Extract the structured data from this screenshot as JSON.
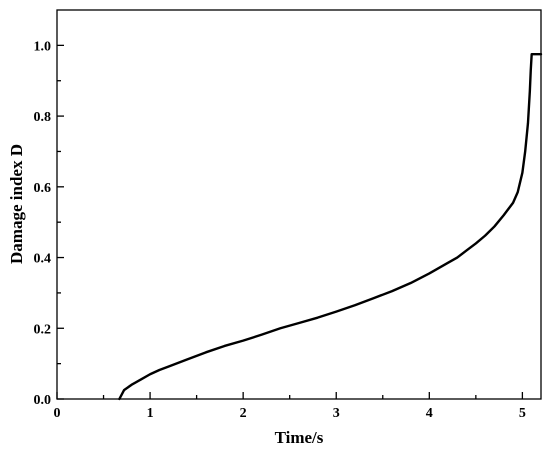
{
  "chart_data": {
    "type": "line",
    "title": "",
    "xlabel": "Time/s",
    "ylabel": "Damage index D",
    "xlim": [
      0,
      5.2
    ],
    "ylim": [
      0,
      1.1
    ],
    "x_major_ticks": [
      0,
      1,
      2,
      3,
      4,
      5
    ],
    "x_minor_ticks": [
      0.5,
      1.5,
      2.5,
      3.5,
      4.5
    ],
    "y_major_ticks": [
      0.0,
      0.2,
      0.4,
      0.6,
      0.8,
      1.0
    ],
    "y_minor_ticks": [
      0.1,
      0.3,
      0.5,
      0.7,
      0.9
    ],
    "x_tick_labels": [
      "0",
      "1",
      "2",
      "3",
      "4",
      "5"
    ],
    "y_tick_labels": [
      "0.0",
      "0.2",
      "0.4",
      "0.6",
      "0.8",
      "1.0"
    ],
    "grid": false,
    "legend": "none",
    "line_color": "#000000",
    "series": [
      {
        "x": [
          0.67,
          0.72,
          0.8,
          0.9,
          1.0,
          1.1,
          1.2,
          1.4,
          1.6,
          1.8,
          2.0,
          2.2,
          2.4,
          2.6,
          2.8,
          3.0,
          3.2,
          3.4,
          3.6,
          3.8,
          4.0,
          4.2,
          4.3,
          4.4,
          4.5,
          4.6,
          4.7,
          4.8,
          4.9,
          4.95,
          5.0,
          5.03,
          5.06,
          5.08,
          5.09,
          5.1,
          5.2
        ],
        "y": [
          0.0,
          0.025,
          0.04,
          0.055,
          0.07,
          0.082,
          0.092,
          0.112,
          0.132,
          0.15,
          0.165,
          0.182,
          0.2,
          0.215,
          0.23,
          0.247,
          0.265,
          0.285,
          0.305,
          0.328,
          0.355,
          0.385,
          0.4,
          0.42,
          0.44,
          0.462,
          0.488,
          0.52,
          0.555,
          0.585,
          0.64,
          0.7,
          0.78,
          0.87,
          0.93,
          0.975,
          0.975
        ]
      }
    ]
  }
}
